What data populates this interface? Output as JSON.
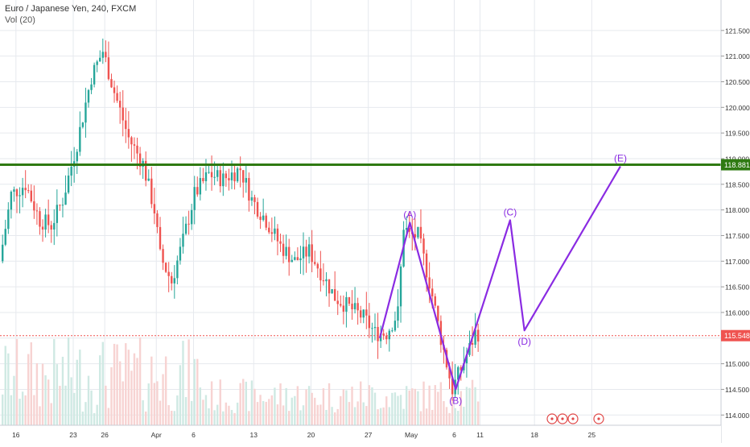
{
  "header": {
    "symbol_title": "Euro / Japanese Yen, 240, FXCM",
    "volume_label": "Vol (20)"
  },
  "colors": {
    "up": "#26a69a",
    "down": "#ef5350",
    "wave": "#8a2be2",
    "resistance": "#2f7a12",
    "current_price": "#ef5350",
    "grid": "#e6e9ee",
    "axis_text": "#333333"
  },
  "chart_data": {
    "type": "candlestick",
    "title": "Euro / Japanese Yen, 240, FXCM",
    "y_axis": {
      "min": 113.8,
      "max": 122.0,
      "ticks": [
        114.0,
        114.5,
        115.0,
        115.5,
        116.0,
        116.5,
        117.0,
        117.5,
        118.0,
        118.5,
        119.0,
        119.5,
        120.0,
        120.5,
        121.0,
        121.5
      ],
      "tick_labels": [
        "114.000",
        "114.500",
        "115.000",
        "115.500",
        "116.000",
        "116.500",
        "117.000",
        "117.500",
        "118.000",
        "118.500",
        "119.000",
        "119.500",
        "120.000",
        "120.500",
        "121.000",
        "121.500"
      ]
    },
    "x_axis": {
      "labels": [
        "16",
        "23",
        "26",
        "Apr",
        "6",
        "13",
        "20",
        "27",
        "May",
        "6",
        "11",
        "18",
        "25"
      ],
      "label_bar_index": [
        5,
        25,
        36,
        54,
        67,
        88,
        108,
        128,
        143,
        158,
        167,
        186,
        206
      ]
    },
    "price_path": [
      [
        0,
        117.0
      ],
      [
        4,
        118.3
      ],
      [
        9,
        118.5
      ],
      [
        14,
        117.8
      ],
      [
        18,
        117.7
      ],
      [
        22,
        118.2
      ],
      [
        27,
        119.3
      ],
      [
        32,
        120.6
      ],
      [
        36,
        121.1
      ],
      [
        40,
        120.3
      ],
      [
        45,
        119.4
      ],
      [
        50,
        118.9
      ],
      [
        54,
        118.0
      ],
      [
        56,
        117.1
      ],
      [
        60,
        116.6
      ],
      [
        64,
        117.4
      ],
      [
        68,
        118.3
      ],
      [
        73,
        118.7
      ],
      [
        78,
        118.6
      ],
      [
        84,
        118.8
      ],
      [
        88,
        118.2
      ],
      [
        93,
        117.8
      ],
      [
        98,
        117.3
      ],
      [
        103,
        117.0
      ],
      [
        108,
        117.2
      ],
      [
        112,
        116.8
      ],
      [
        117,
        116.3
      ],
      [
        122,
        116.1
      ],
      [
        127,
        115.9
      ],
      [
        131,
        115.6
      ],
      [
        135,
        115.6
      ],
      [
        139,
        116.0
      ],
      [
        141,
        117.7
      ],
      [
        143,
        117.5
      ],
      [
        146,
        117.5
      ],
      [
        150,
        116.6
      ],
      [
        154,
        115.5
      ],
      [
        158,
        114.5
      ],
      [
        161,
        114.9
      ],
      [
        164,
        115.3
      ],
      [
        166,
        115.6
      ]
    ],
    "resistance_level": {
      "value": 118.881,
      "label": "118.881"
    },
    "current_price": {
      "value": 115.548,
      "label": "115.548"
    },
    "wave_labels": [
      "(A)",
      "(B)",
      "(C)",
      "(D)",
      "(E)"
    ],
    "wave_points": [
      {
        "bar": 132,
        "price": 115.5,
        "label": ""
      },
      {
        "bar": 142.5,
        "price": 117.75,
        "label": "(A)"
      },
      {
        "bar": 158.5,
        "price": 114.5,
        "label": "(B)"
      },
      {
        "bar": 177.5,
        "price": 117.8,
        "label": "(C)"
      },
      {
        "bar": 182.5,
        "price": 115.65,
        "label": "(D)"
      },
      {
        "bar": 216,
        "price": 118.85,
        "label": "(E)"
      }
    ]
  }
}
